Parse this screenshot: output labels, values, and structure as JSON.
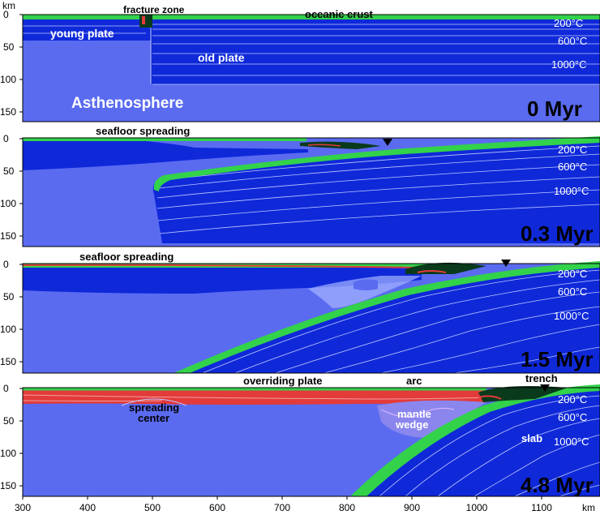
{
  "axis": {
    "y_unit": "km",
    "x_unit": "km",
    "y_ticks": [
      "0",
      "50",
      "100",
      "150"
    ],
    "x_ticks": [
      "300",
      "400",
      "500",
      "600",
      "700",
      "800",
      "900",
      "1000",
      "1100"
    ]
  },
  "colors": {
    "asthenosphere": "#5a6bf0",
    "lithosphere": "#0f29d9",
    "crust": "#32d24a",
    "melt": "#e33a3a",
    "sediment": "#0a3a1c"
  },
  "panels": [
    {
      "age": "0 Myr",
      "labels": {
        "fracture_zone": "fracture zone",
        "oceanic_crust": "oceanic crust",
        "young_plate": "young plate",
        "old_plate": "old plate",
        "asthenosphere": "Asthenosphere"
      },
      "isotherms": [
        "200°C",
        "600°C",
        "1000°C"
      ]
    },
    {
      "age": "0.3 Myr",
      "labels": {
        "seafloor_spreading": "seafloor spreading"
      },
      "isotherms": [
        "200°C",
        "600°C",
        "1000°C"
      ]
    },
    {
      "age": "1.5 Myr",
      "labels": {
        "seafloor_spreading": "seafloor spreading"
      },
      "isotherms": [
        "200°C",
        "600°C",
        "1000°C"
      ]
    },
    {
      "age": "4.8 Myr",
      "labels": {
        "overriding_plate": "overriding plate",
        "arc": "arc",
        "trench": "trench",
        "mantle_wedge_1": "mantle",
        "mantle_wedge_2": "wedge",
        "spreading_center_1": "spreading",
        "spreading_center_2": "center",
        "slab": "slab"
      },
      "isotherms": [
        "200°C",
        "600°C",
        "1000°C"
      ]
    }
  ]
}
